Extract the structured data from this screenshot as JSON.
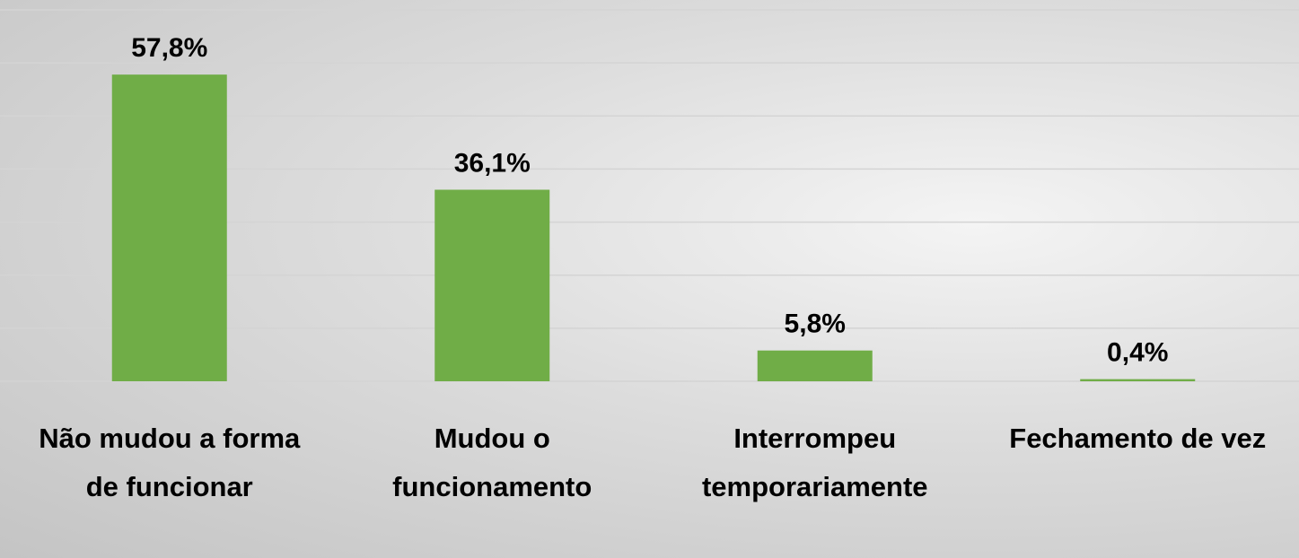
{
  "chart_data": {
    "type": "bar",
    "categories": [
      "Não mudou a forma de funcionar",
      "Mudou o funcionamento",
      "Interrompeu temporariamente",
      "Fechamento de vez"
    ],
    "values": [
      57.8,
      36.1,
      5.8,
      0.4
    ],
    "value_labels": [
      "57,8%",
      "36,1%",
      "5,8%",
      "0,4%"
    ],
    "color": "#70ad47",
    "ylim": [
      0,
      70
    ],
    "yticks": [
      0,
      10,
      20,
      30,
      40,
      50,
      60,
      70
    ],
    "grid": true
  }
}
